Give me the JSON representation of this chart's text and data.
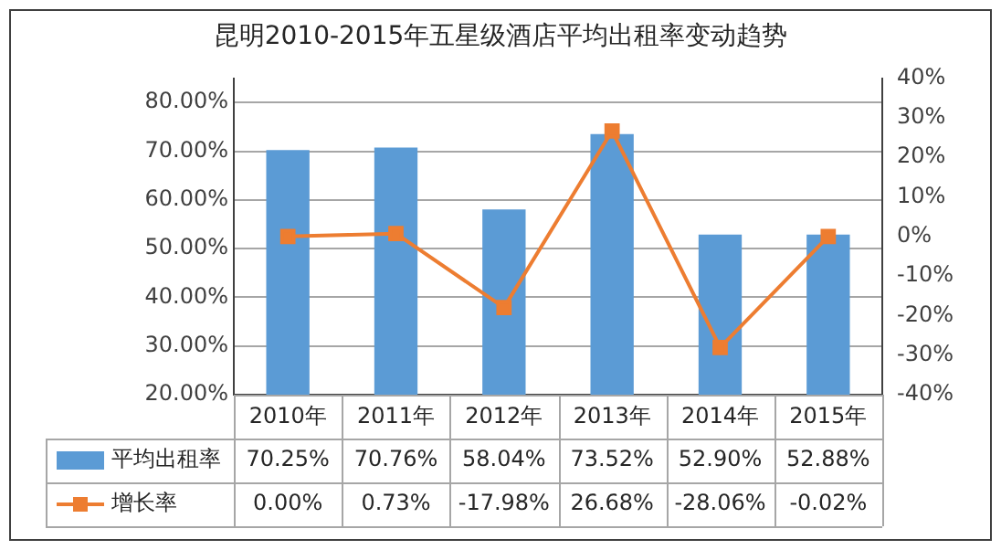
{
  "chart_data": {
    "type": "bar",
    "title": "昆明2010-2015年五星级酒店平均出租率变动趋势",
    "categories": [
      "2010年",
      "2011年",
      "2012年",
      "2013年",
      "2014年",
      "2015年"
    ],
    "series": [
      {
        "name": "平均出租率",
        "color": "#5b9bd5",
        "values": [
          70.25,
          70.76,
          58.04,
          73.52,
          52.9,
          52.88
        ],
        "value_labels": [
          "70.25%",
          "70.76%",
          "58.04%",
          "73.52%",
          "52.90%",
          "52.88%"
        ]
      },
      {
        "name": "增长率",
        "type": "line",
        "axis": "y2",
        "color": "#ed7d31",
        "marker": "square",
        "values": [
          0.0,
          0.73,
          -17.98,
          26.68,
          -28.06,
          -0.02
        ],
        "value_labels": [
          "0.00%",
          "0.73%",
          "-17.98%",
          "26.68%",
          "-28.06%",
          "-0.02%"
        ]
      }
    ],
    "ylim": [
      20,
      85
    ],
    "yticks": [
      {
        "value": 20,
        "label": "20.00%"
      },
      {
        "value": 30,
        "label": "30.00%"
      },
      {
        "value": 40,
        "label": "40.00%"
      },
      {
        "value": 50,
        "label": "50.00%"
      },
      {
        "value": 60,
        "label": "60.00%"
      },
      {
        "value": 70,
        "label": "70.00%"
      },
      {
        "value": 80,
        "label": "80.00%"
      }
    ],
    "y2lim": [
      -40,
      40
    ],
    "y2ticks": [
      {
        "value": -40,
        "label": "-40%"
      },
      {
        "value": -30,
        "label": "-30%"
      },
      {
        "value": -20,
        "label": "-20%"
      },
      {
        "value": -10,
        "label": "-10%"
      },
      {
        "value": 0,
        "label": "0%"
      },
      {
        "value": 10,
        "label": "10%"
      },
      {
        "value": 20,
        "label": "20%"
      },
      {
        "value": 30,
        "label": "30%"
      },
      {
        "value": 40,
        "label": "40%"
      }
    ],
    "grid": "y",
    "legend": "bottom"
  }
}
